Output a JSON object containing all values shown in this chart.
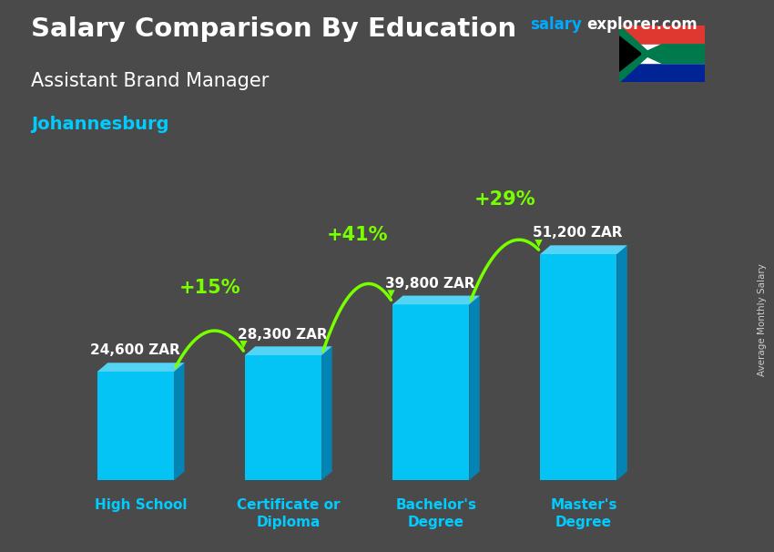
{
  "title": "Salary Comparison By Education",
  "subtitle": "Assistant Brand Manager",
  "city": "Johannesburg",
  "site_salary": "salary",
  "site_explorer": "explorer.com",
  "y_label": "Average Monthly Salary",
  "categories": [
    "High School",
    "Certificate or\nDiploma",
    "Bachelor's\nDegree",
    "Master's\nDegree"
  ],
  "values": [
    24600,
    28300,
    39800,
    51200
  ],
  "value_labels": [
    "24,600 ZAR",
    "28,300 ZAR",
    "39,800 ZAR",
    "51,200 ZAR"
  ],
  "pct_labels": [
    "+15%",
    "+41%",
    "+29%"
  ],
  "bar_face": "#00CCFF",
  "bar_side": "#0088BB",
  "bar_top": "#55DDFF",
  "bg_color": "#4a4a4a",
  "title_color": "#FFFFFF",
  "subtitle_color": "#FFFFFF",
  "city_color": "#00CCFF",
  "value_color": "#FFFFFF",
  "pct_color": "#77FF00",
  "site_color1": "#00AAFF",
  "site_color2": "#FFFFFF",
  "ylim": [
    0,
    65000
  ],
  "fig_width": 8.5,
  "fig_height": 6.06,
  "bar_positions": [
    0,
    1,
    2,
    3
  ],
  "bar_width": 0.52
}
